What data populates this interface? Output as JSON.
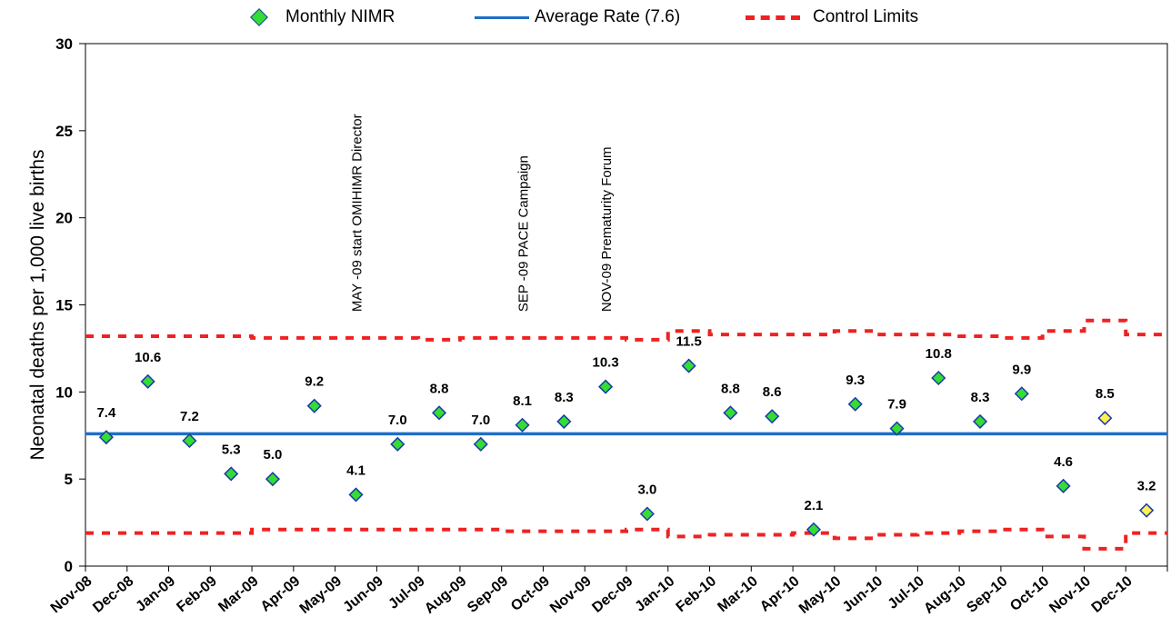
{
  "legend": {
    "monthly": "Monthly NIMR",
    "average": "Average Rate (7.6)",
    "limits": "Control Limits"
  },
  "colors": {
    "point_fill": "#33dd33",
    "point_fill_highlight": "#ffee55",
    "point_stroke": "#1c3aa8",
    "average_line": "#1f6fc6",
    "limits_line": "#ee2222"
  },
  "chart_data": {
    "type": "scatter",
    "ylabel": "Neonatal deaths per 1,000 live births",
    "xlabel": "",
    "ylim": [
      0,
      30
    ],
    "yticks": [
      0,
      5,
      10,
      15,
      20,
      25,
      30
    ],
    "x_tick_labels": [
      "Nov-08",
      "Dec-08",
      "Jan-09",
      "Feb-09",
      "Mar-09",
      "Apr-09",
      "May-09",
      "Jun-09",
      "Jul-09",
      "Aug-09",
      "Sep-09",
      "Oct-09",
      "Nov-09",
      "Dec-09",
      "Jan-10",
      "Feb-10",
      "Mar-10",
      "Apr-10",
      "May-10",
      "Jun-10",
      "Jul-10",
      "Aug-10",
      "Sep-10",
      "Oct-10",
      "Nov-10",
      "Dec-10"
    ],
    "points": [
      {
        "label": "7.4",
        "value": 7.4,
        "highlight": false
      },
      {
        "label": "10.6",
        "value": 10.6,
        "highlight": false
      },
      {
        "label": "7.2",
        "value": 7.2,
        "highlight": false
      },
      {
        "label": "5.3",
        "value": 5.3,
        "highlight": false
      },
      {
        "label": "5.0",
        "value": 5.0,
        "highlight": false
      },
      {
        "label": "9.2",
        "value": 9.2,
        "highlight": false
      },
      {
        "label": "4.1",
        "value": 4.1,
        "highlight": false
      },
      {
        "label": "7.0",
        "value": 7.0,
        "highlight": false
      },
      {
        "label": "8.8",
        "value": 8.8,
        "highlight": false
      },
      {
        "label": "7.0",
        "value": 7.0,
        "highlight": false
      },
      {
        "label": "8.1",
        "value": 8.1,
        "highlight": false
      },
      {
        "label": "8.3",
        "value": 8.3,
        "highlight": false
      },
      {
        "label": "10.3",
        "value": 10.3,
        "highlight": false
      },
      {
        "label": "3.0",
        "value": 3.0,
        "highlight": false
      },
      {
        "label": "11.5",
        "value": 11.5,
        "highlight": false
      },
      {
        "label": "8.8",
        "value": 8.8,
        "highlight": false
      },
      {
        "label": "8.6",
        "value": 8.6,
        "highlight": false
      },
      {
        "label": "2.1",
        "value": 2.1,
        "highlight": false
      },
      {
        "label": "9.3",
        "value": 9.3,
        "highlight": false
      },
      {
        "label": "7.9",
        "value": 7.9,
        "highlight": false
      },
      {
        "label": "10.8",
        "value": 10.8,
        "highlight": false
      },
      {
        "label": "8.3",
        "value": 8.3,
        "highlight": false
      },
      {
        "label": "9.9",
        "value": 9.9,
        "highlight": false
      },
      {
        "label": "4.6",
        "value": 4.6,
        "highlight": false
      },
      {
        "label": "8.5",
        "value": 8.5,
        "highlight": true
      },
      {
        "label": "3.2",
        "value": 3.2,
        "highlight": true
      }
    ],
    "average": 7.6,
    "ucl": [
      13.2,
      13.2,
      13.2,
      13.2,
      13.1,
      13.1,
      13.1,
      13.1,
      13.0,
      13.1,
      13.1,
      13.1,
      13.1,
      13.0,
      13.5,
      13.3,
      13.3,
      13.3,
      13.5,
      13.3,
      13.3,
      13.2,
      13.1,
      13.5,
      14.1,
      13.3
    ],
    "lcl": [
      1.9,
      1.9,
      1.9,
      1.9,
      2.1,
      2.1,
      2.1,
      2.1,
      2.1,
      2.1,
      2.0,
      2.0,
      2.0,
      2.1,
      1.7,
      1.8,
      1.8,
      1.9,
      1.6,
      1.8,
      1.9,
      2.0,
      2.1,
      1.7,
      1.0,
      1.9
    ],
    "annotations": [
      {
        "text": "MAY -09 start OMIHIMR Director",
        "month_index": 6
      },
      {
        "text": "SEP -09 PACE Campaign",
        "month_index": 10
      },
      {
        "text": "NOV-09 Prematurity Forum",
        "month_index": 12
      }
    ],
    "grid": false,
    "legend_position": "top"
  }
}
